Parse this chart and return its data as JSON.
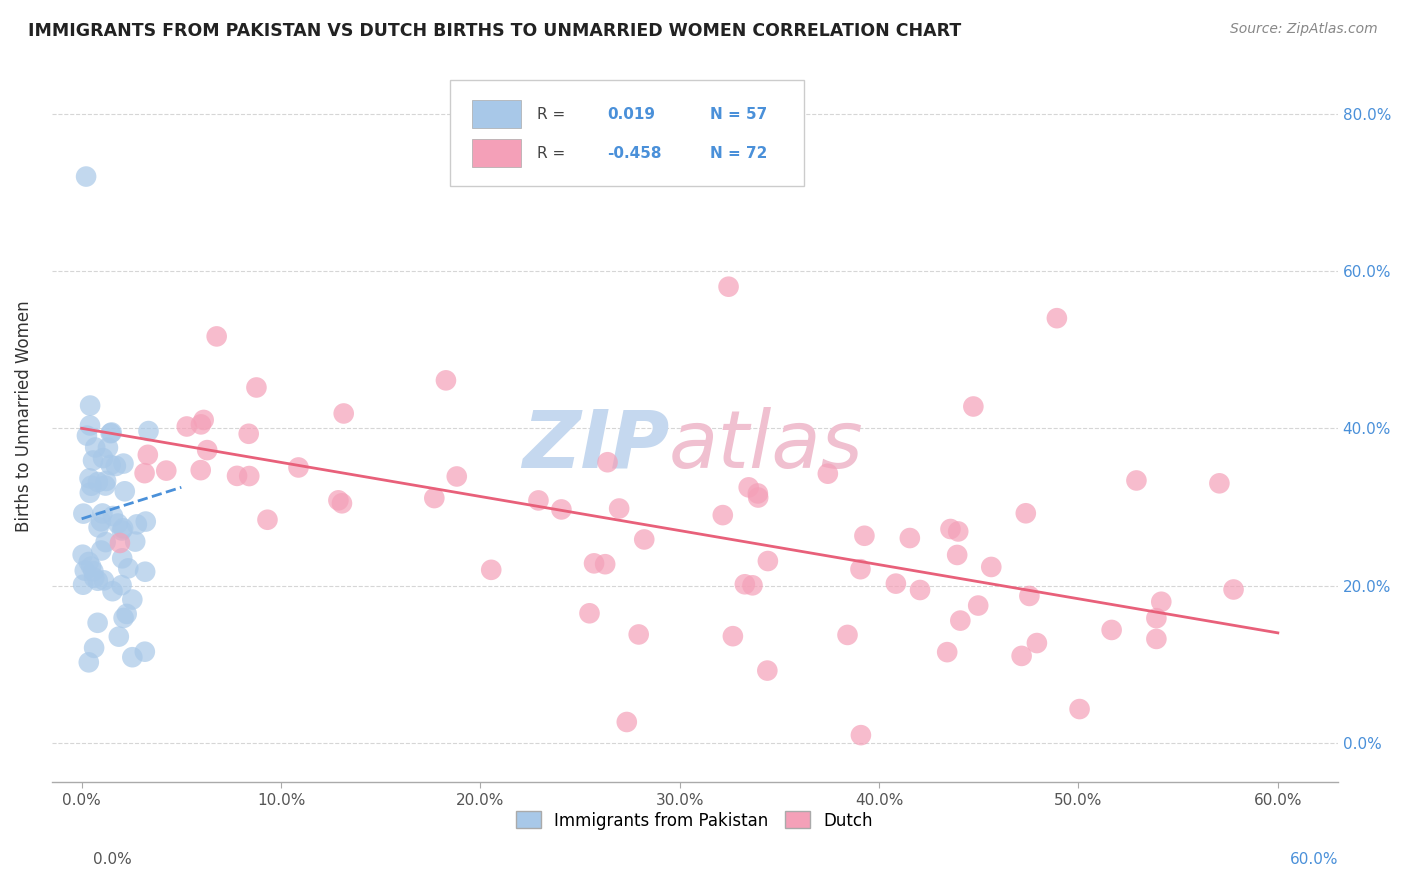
{
  "title": "IMMIGRANTS FROM PAKISTAN VS DUTCH BIRTHS TO UNMARRIED WOMEN CORRELATION CHART",
  "source": "Source: ZipAtlas.com",
  "ylabel": "Births to Unmarried Women",
  "x_tick_vals": [
    0,
    10,
    20,
    30,
    40,
    50,
    60
  ],
  "y_tick_vals": [
    0,
    20,
    40,
    60,
    80
  ],
  "xlim": [
    -1.5,
    63
  ],
  "ylim": [
    -5,
    88
  ],
  "color_blue": "#a8c8e8",
  "color_pink": "#f4a0b8",
  "color_blue_line": "#4a90d9",
  "color_pink_line": "#e8607a",
  "color_blue_label": "#4a90d9",
  "watermark_zip_color": "#c5d8ef",
  "watermark_atlas_color": "#f0c0d0",
  "pak_line_start_y": 28.5,
  "pak_line_end_y": 32.5,
  "dutch_line_start_y": 40.0,
  "dutch_line_end_y": 14.0,
  "pak_x_max": 5.0,
  "dutch_x_max": 60.0
}
